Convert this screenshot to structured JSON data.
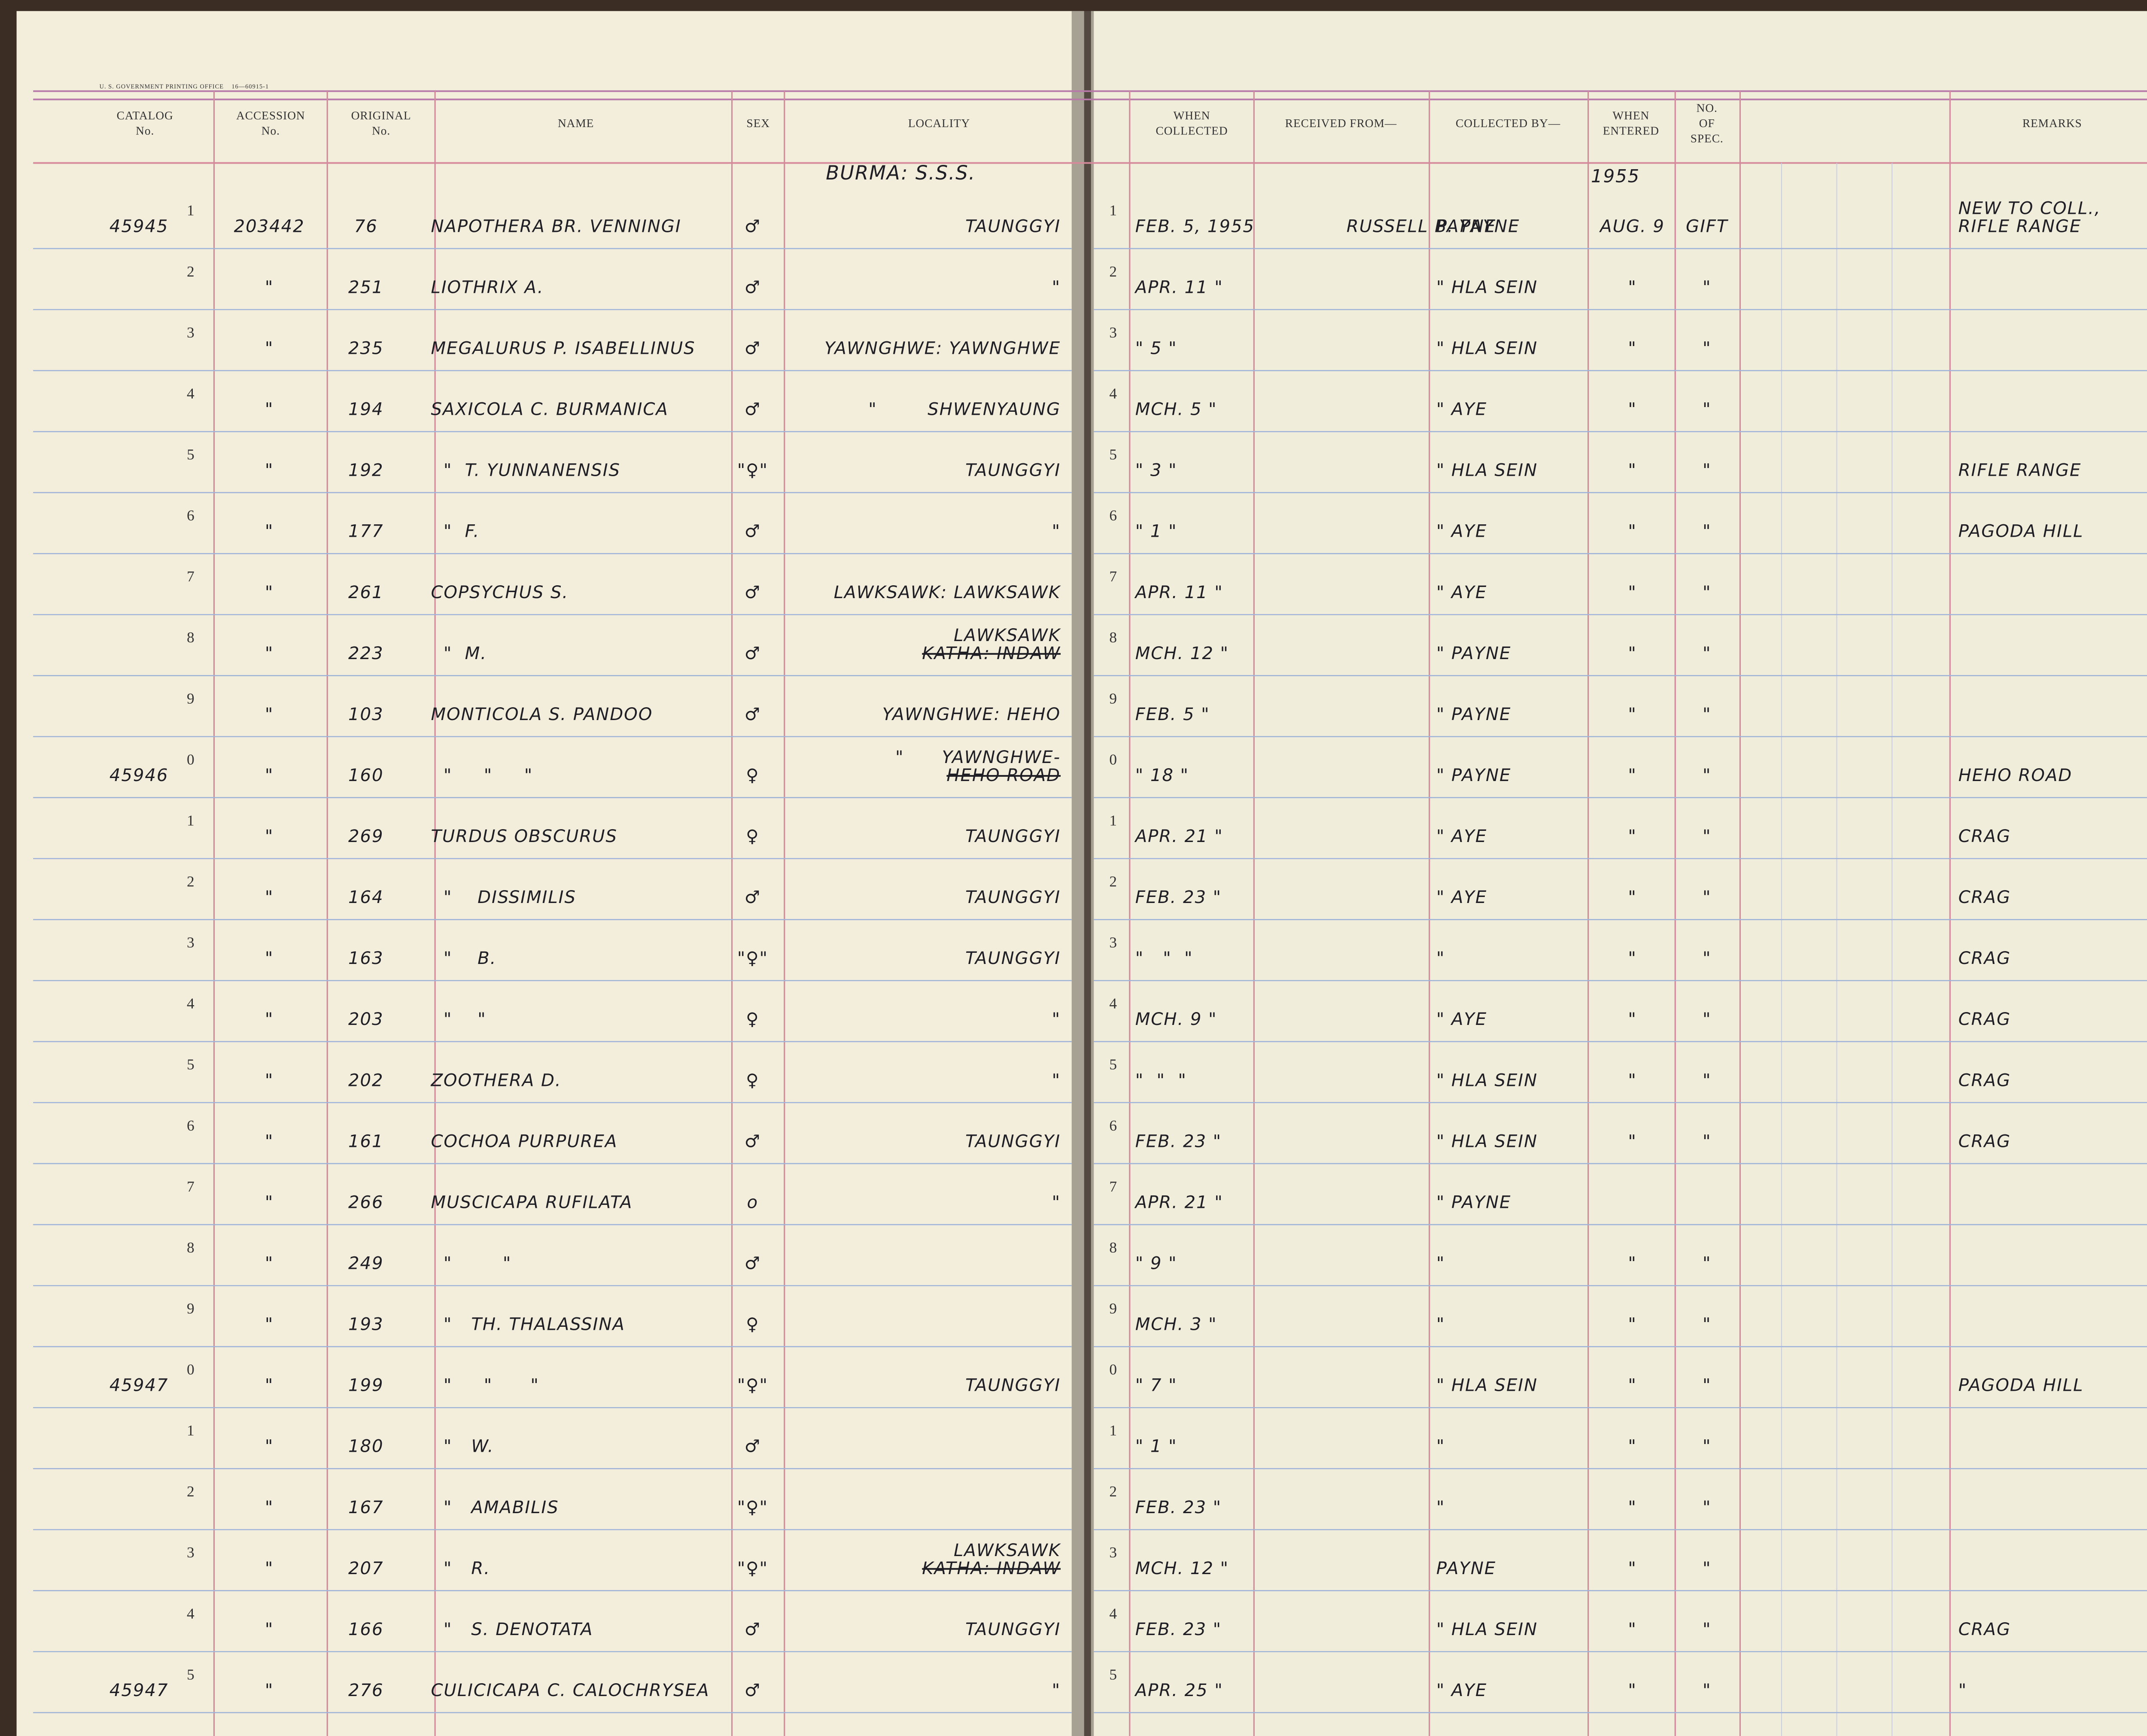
{
  "ledger": {
    "imprint": "U. S. GOVERNMENT PRINTING OFFICE    16—60915-1",
    "columns": {
      "catalog": [
        "CATALOG",
        "No."
      ],
      "accession": [
        "ACCESSION",
        "No."
      ],
      "original": [
        "ORIGINAL",
        "No."
      ],
      "name": [
        "NAME"
      ],
      "sex": [
        "SEX"
      ],
      "locality": [
        "LOCALITY"
      ],
      "collected": [
        "WHEN",
        "COLLECTED"
      ],
      "received": [
        "RECEIVED FROM—"
      ],
      "collector": [
        "COLLECTED BY—"
      ],
      "entered": [
        "WHEN",
        "ENTERED"
      ],
      "count": [
        "NO.",
        "OF",
        "SPEC."
      ],
      "remarks": [
        "REMARKS"
      ]
    },
    "locality_note": "BURMA: S.S.S.",
    "year_note": "1955",
    "rows": [
      {
        "catalog": "45945",
        "line": "1",
        "accession": "203442",
        "original": "76",
        "name": "NAPOTHERA BR. VENNINGI",
        "sex": "♂",
        "locality": "TAUNGGYI",
        "line_right": "1",
        "collected": "FEB. 5, 1955",
        "received": "RUSSELL B. PAYNE",
        "collector": "PAYNE",
        "entered": "AUG. 9",
        "count": "GIFT",
        "remarks": [
          "NEW TO COLL.,",
          "RIFLE RANGE"
        ]
      },
      {
        "line": "2",
        "accession": "\"",
        "original": "251",
        "name": "LIOTHRIX A.",
        "sex": "♂",
        "locality": "\"",
        "line_right": "2",
        "collected": "APR. 11 \"",
        "collector": "\" HLA SEIN",
        "entered": "\"",
        "count": "\""
      },
      {
        "line": "3",
        "accession": "\"",
        "original": "235",
        "name": "MEGALURUS P. ISABELLINUS",
        "sex": "♂",
        "locality": "YAWNGHWE: YAWNGHWE",
        "line_right": "3",
        "collected": "\" 5 \"",
        "collector": "\" HLA SEIN",
        "entered": "\"",
        "count": "\""
      },
      {
        "line": "4",
        "accession": "\"",
        "original": "194",
        "name": "SAXICOLA C. BURMANICA",
        "sex": "♂",
        "locality": "\"        SHWENYAUNG",
        "line_right": "4",
        "collected": "MCH. 5 \"",
        "collector": "\" AYE",
        "entered": "\"",
        "count": "\""
      },
      {
        "line": "5",
        "accession": "\"",
        "original": "192",
        "name": "  \"  T. YUNNANENSIS",
        "sex": "\"♀\"",
        "locality": "TAUNGGYI",
        "line_right": "5",
        "collected": "\" 3 \"",
        "collector": "\" HLA SEIN",
        "entered": "\"",
        "count": "\"",
        "remarks": "RIFLE RANGE"
      },
      {
        "line": "6",
        "accession": "\"",
        "original": "177",
        "name": "  \"  F.",
        "sex": "♂",
        "locality": "\"",
        "line_right": "6",
        "collected": "\" 1 \"",
        "collector": "\" AYE",
        "entered": "\"",
        "count": "\"",
        "remarks": "PAGODA HILL"
      },
      {
        "line": "7",
        "accession": "\"",
        "original": "261",
        "name": "COPSYCHUS S.",
        "sex": "♂",
        "locality": "LAWKSAWK: LAWKSAWK",
        "line_right": "7",
        "collected": "APR. 11 \"",
        "collector": "\" AYE",
        "entered": "\"",
        "count": "\""
      },
      {
        "line": "8",
        "accession": "\"",
        "original": "223",
        "name": "  \"  M.",
        "sex": "♂",
        "locality": [
          "LAWKSAWK",
          "KATHA: INDAW"
        ],
        "line_right": "8",
        "collected": "MCH. 12 \"",
        "collector": "\" PAYNE",
        "entered": "\"",
        "count": "\""
      },
      {
        "line": "9",
        "accession": "\"",
        "original": "103",
        "name": "MONTICOLA S. PANDOO",
        "sex": "♂",
        "locality": "YAWNGHWE: HEHO",
        "line_right": "9",
        "collected": "FEB. 5 \"",
        "collector": "\" PAYNE",
        "entered": "\"",
        "count": "\""
      },
      {
        "catalog": "45946",
        "line": "0",
        "accession": "\"",
        "original": "160",
        "name": "  \"     \"     \"",
        "sex": "♀",
        "locality": [
          "\"      YAWNGHWE-",
          "HEHO ROAD"
        ],
        "line_right": "0",
        "collected": "\" 18 \"",
        "collector": "\" PAYNE",
        "entered": "\"",
        "count": "\"",
        "remarks": "HEHO ROAD"
      },
      {
        "line": "1",
        "accession": "\"",
        "original": "269",
        "name": "TURDUS OBSCURUS",
        "sex": "♀",
        "locality": "TAUNGGYI",
        "line_right": "1",
        "collected": "APR. 21 \"",
        "collector": "\" AYE",
        "entered": "\"",
        "count": "\"",
        "remarks": "CRAG"
      },
      {
        "line": "2",
        "accession": "\"",
        "original": "164",
        "name": "  \"    DISSIMILIS",
        "sex": "♂",
        "locality": "TAUNGGYI",
        "line_right": "2",
        "collected": "FEB. 23 \"",
        "collector": "\" AYE",
        "entered": "\"",
        "count": "\"",
        "remarks": "CRAG"
      },
      {
        "line": "3",
        "accession": "\"",
        "original": "163",
        "name": "  \"    B.",
        "sex": "\"♀\"",
        "locality": "TAUNGGYI",
        "line_right": "3",
        "collected": "\"   \"  \"",
        "collector": "\"",
        "entered": "\"",
        "count": "\"",
        "remarks": "CRAG"
      },
      {
        "line": "4",
        "accession": "\"",
        "original": "203",
        "name": "  \"    \"",
        "sex": "♀",
        "locality": "\"",
        "line_right": "4",
        "collected": "MCH. 9 \"",
        "collector": "\" AYE",
        "entered": "\"",
        "count": "\"",
        "remarks": "CRAG"
      },
      {
        "line": "5",
        "accession": "\"",
        "original": "202",
        "name": "ZOOTHERA D.",
        "sex": "♀",
        "locality": "\"",
        "line_right": "5",
        "collected": "\"  \"  \"",
        "collector": "\" HLA SEIN",
        "entered": "\"",
        "count": "\"",
        "remarks": "CRAG"
      },
      {
        "line": "6",
        "accession": "\"",
        "original": "161",
        "name": "COCHOA PURPUREA",
        "sex": "♂",
        "locality": "TAUNGGYI",
        "line_right": "6",
        "collected": "FEB. 23 \"",
        "collector": "\" HLA SEIN",
        "entered": "\"",
        "count": "\"",
        "remarks": "CRAG"
      },
      {
        "line": "7",
        "accession": "\"",
        "original": "266",
        "name": "MUSCICAPA RUFILATA",
        "sex": "o",
        "locality": "\"",
        "line_right": "7",
        "collected": "APR. 21 \"",
        "collector": "\" PAYNE"
      },
      {
        "line": "8",
        "accession": "\"",
        "original": "249",
        "name": "  \"        \"",
        "sex": "♂",
        "line_right": "8",
        "collected": "\" 9 \"",
        "collector": "\"",
        "entered": "\"",
        "count": "\""
      },
      {
        "line": "9",
        "accession": "\"",
        "original": "193",
        "name": "  \"   TH. THALASSINA",
        "sex": "♀",
        "line_right": "9",
        "collected": "MCH. 3 \"",
        "collector": "\"",
        "entered": "\"",
        "count": "\""
      },
      {
        "catalog": "45947",
        "line": "0",
        "accession": "\"",
        "original": "199",
        "name": "  \"     \"      \"",
        "sex": "\"♀\"",
        "locality": "TAUNGGYI",
        "line_right": "0",
        "collected": "\" 7 \"",
        "collector": "\" HLA SEIN",
        "entered": "\"",
        "count": "\"",
        "remarks": "PAGODA HILL"
      },
      {
        "line": "1",
        "accession": "\"",
        "original": "180",
        "name": "  \"   W.",
        "sex": "♂",
        "line_right": "1",
        "collected": "\" 1 \"",
        "collector": "\"",
        "entered": "\"",
        "count": "\""
      },
      {
        "line": "2",
        "accession": "\"",
        "original": "167",
        "name": "  \"   AMABILIS",
        "sex": "\"♀\"",
        "line_right": "2",
        "collected": "FEB. 23 \"",
        "collector": "\"",
        "entered": "\"",
        "count": "\""
      },
      {
        "line": "3",
        "accession": "\"",
        "original": "207",
        "name": "  \"   R.",
        "sex": "\"♀\"",
        "locality": [
          "LAWKSAWK",
          "KATHA: INDAW"
        ],
        "line_right": "3",
        "collected": "MCH. 12 \"",
        "collector": "PAYNE",
        "entered": "\"",
        "count": "\""
      },
      {
        "line": "4",
        "accession": "\"",
        "original": "166",
        "name": "  \"   S. DENOTATA",
        "sex": "♂",
        "locality": "TAUNGGYI",
        "line_right": "4",
        "collected": "FEB. 23 \"",
        "collector": "\" HLA SEIN",
        "entered": "\"",
        "count": "\"",
        "remarks": "CRAG"
      },
      {
        "catalog": "45947",
        "line": "5",
        "accession": "\"",
        "original": "276",
        "name": "CULICICAPA C. CALOCHRYSEA",
        "sex": "♂",
        "locality": "\"",
        "line_right": "5",
        "collected": "APR. 25 \"",
        "collector": "\" AYE",
        "entered": "\"",
        "count": "\"",
        "remarks": "\""
      }
    ]
  }
}
